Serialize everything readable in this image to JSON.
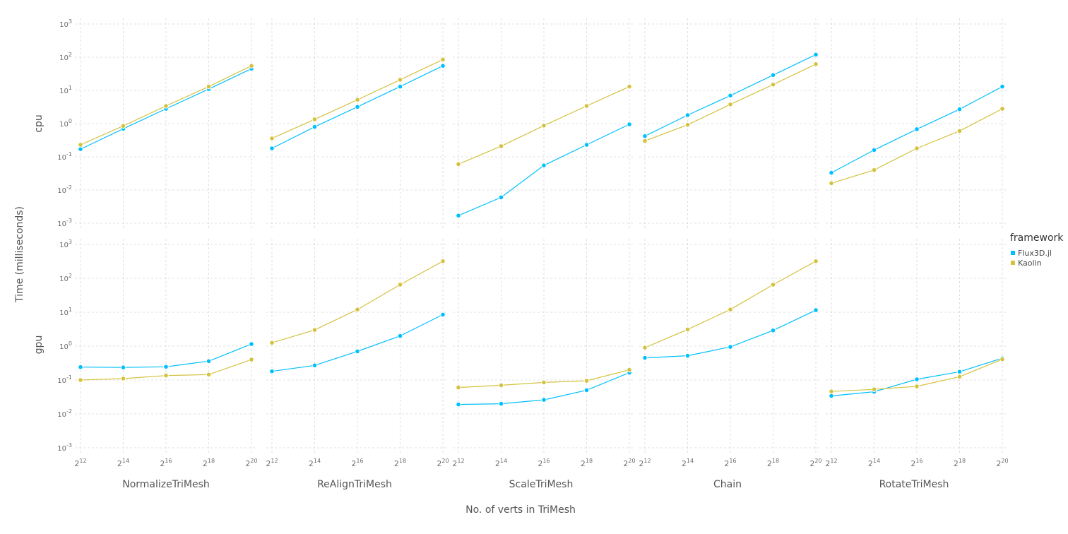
{
  "chart_data": {
    "type": "line",
    "xlabel": "No. of verts in TriMesh",
    "ylabel": "Time (milliseconds)",
    "x_scale": "log2",
    "y_scale": "log10",
    "x_ticks": [
      12,
      14,
      16,
      18,
      20
    ],
    "x_tick_base": "2",
    "y_ticks": [
      -3,
      -2,
      -1,
      0,
      1,
      2,
      3
    ],
    "y_tick_base": "10",
    "ylim": [
      0.001,
      1000
    ],
    "grid": true,
    "legend": {
      "title": "framework",
      "position": "right",
      "entries": [
        {
          "name": "Flux3D.jl",
          "color": "#00bfff"
        },
        {
          "name": "Kaolin",
          "color": "#d4c23e"
        }
      ]
    },
    "columns": [
      "NormalizeTriMesh",
      "ReAlignTriMesh",
      "ScaleTriMesh",
      "Chain",
      "RotateTriMesh"
    ],
    "rows": [
      "cpu",
      "gpu"
    ],
    "x": [
      4096,
      16384,
      65536,
      262144,
      1048576
    ],
    "panels": [
      {
        "row": "cpu",
        "column": "NormalizeTriMesh",
        "series": [
          {
            "name": "Flux3D.jl",
            "values": [
              0.17,
              0.7,
              2.8,
              11,
              45
            ]
          },
          {
            "name": "Kaolin",
            "values": [
              0.23,
              0.85,
              3.4,
              13,
              55
            ]
          }
        ]
      },
      {
        "row": "cpu",
        "column": "ReAlignTriMesh",
        "series": [
          {
            "name": "Flux3D.jl",
            "values": [
              0.18,
              0.8,
              3.2,
              13,
              55
            ]
          },
          {
            "name": "Kaolin",
            "values": [
              0.36,
              1.35,
              5.2,
              21,
              85
            ]
          }
        ]
      },
      {
        "row": "cpu",
        "column": "ScaleTriMesh",
        "series": [
          {
            "name": "Flux3D.jl",
            "values": [
              0.0017,
              0.006,
              0.055,
              0.23,
              0.95
            ]
          },
          {
            "name": "Kaolin",
            "values": [
              0.06,
              0.21,
              0.87,
              3.4,
              13
            ]
          }
        ]
      },
      {
        "row": "cpu",
        "column": "Chain",
        "series": [
          {
            "name": "Flux3D.jl",
            "values": [
              0.42,
              1.8,
              7,
              29,
              120
            ]
          },
          {
            "name": "Kaolin",
            "values": [
              0.3,
              0.92,
              3.8,
              15,
              62
            ]
          }
        ]
      },
      {
        "row": "cpu",
        "column": "RotateTriMesh",
        "series": [
          {
            "name": "Flux3D.jl",
            "values": [
              0.033,
              0.16,
              0.68,
              2.7,
              13
            ]
          },
          {
            "name": "Kaolin",
            "values": [
              0.016,
              0.04,
              0.18,
              0.6,
              2.8
            ]
          }
        ]
      },
      {
        "row": "gpu",
        "column": "NormalizeTriMesh",
        "series": [
          {
            "name": "Flux3D.jl",
            "values": [
              0.24,
              0.235,
              0.245,
              0.36,
              1.15
            ]
          },
          {
            "name": "Kaolin",
            "values": [
              0.1,
              0.11,
              0.135,
              0.145,
              0.4
            ]
          }
        ]
      },
      {
        "row": "gpu",
        "column": "ReAlignTriMesh",
        "series": [
          {
            "name": "Flux3D.jl",
            "values": [
              0.18,
              0.27,
              0.7,
              2.0,
              8.5
            ]
          },
          {
            "name": "Kaolin",
            "values": [
              1.25,
              3.0,
              12,
              65,
              320
            ]
          }
        ]
      },
      {
        "row": "gpu",
        "column": "ScaleTriMesh",
        "series": [
          {
            "name": "Flux3D.jl",
            "values": [
              0.019,
              0.02,
              0.026,
              0.05,
              0.165
            ]
          },
          {
            "name": "Kaolin",
            "values": [
              0.06,
              0.07,
              0.085,
              0.095,
              0.2
            ]
          }
        ]
      },
      {
        "row": "gpu",
        "column": "Chain",
        "series": [
          {
            "name": "Flux3D.jl",
            "values": [
              0.45,
              0.52,
              0.95,
              2.9,
              11.5
            ]
          },
          {
            "name": "Kaolin",
            "values": [
              0.9,
              3.1,
              12,
              65,
              320
            ]
          }
        ]
      },
      {
        "row": "gpu",
        "column": "RotateTriMesh",
        "series": [
          {
            "name": "Flux3D.jl",
            "values": [
              0.034,
              0.045,
              0.105,
              0.175,
              0.44
            ]
          },
          {
            "name": "Kaolin",
            "values": [
              0.046,
              0.053,
              0.065,
              0.125,
              0.41
            ]
          }
        ]
      }
    ]
  }
}
